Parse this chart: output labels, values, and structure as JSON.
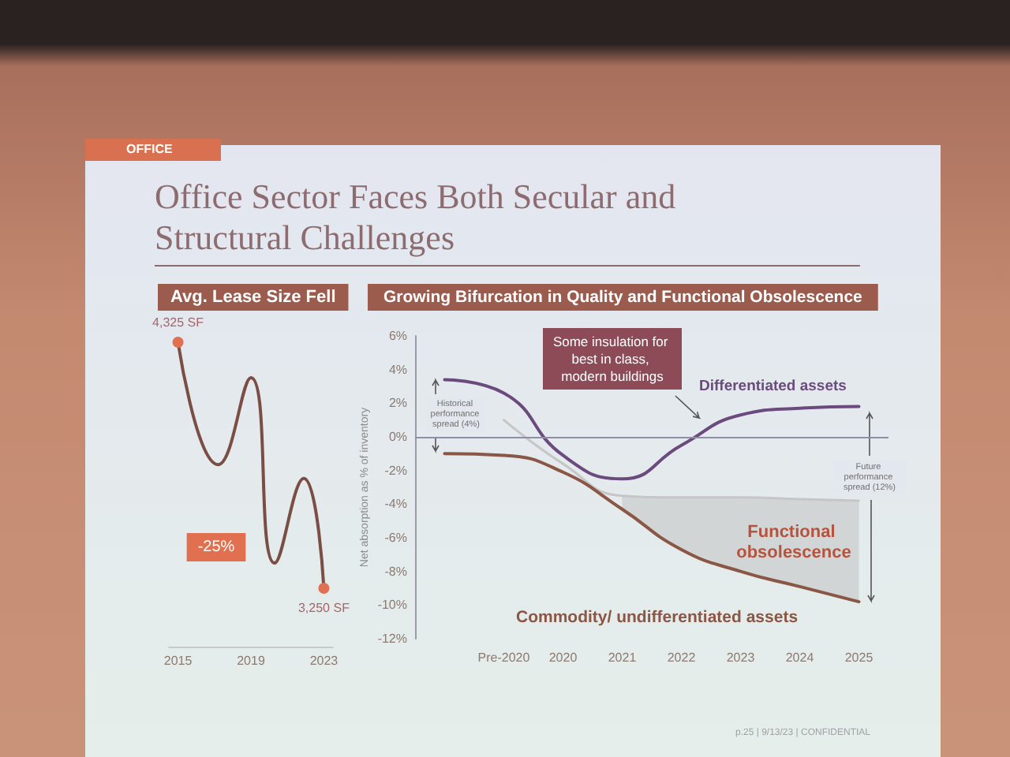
{
  "chart_data": [
    {
      "type": "other",
      "title": "Office Sector Faces Both Secular and Structural Challenges",
      "annotations": [
        "OFFICE",
        "p.25 | 9/13/23 | CONFIDENTIAL"
      ]
    },
    {
      "type": "line",
      "title": "Avg. Lease Size Fell",
      "x": [
        2015,
        2017.2,
        2019,
        2020.3,
        2021.9,
        2023
      ],
      "values": [
        4325,
        3790,
        4170,
        3360,
        3730,
        3250
      ],
      "value_labels": [
        "4,325 SF",
        null,
        null,
        null,
        null,
        "3,250 SF"
      ],
      "color": "#7a4e44",
      "xlim": [
        2014.5,
        2023.5
      ],
      "xticks": [
        2015,
        2019,
        2023
      ],
      "tick_labels": "x",
      "annotations": [
        "-25%"
      ]
    },
    {
      "type": "line",
      "title": "Growing Bifurcation in Quality and Functional Obsolescence",
      "ylabel": "Net absorption as % of inventory",
      "categories": [
        null,
        "Pre-2020",
        "2020",
        "2021",
        "2022",
        "2023",
        "2024",
        "2025"
      ],
      "series": [
        {
          "color": "#c6c6c6",
          "values": [
            null,
            1.0,
            -1.6,
            -3.5,
            -3.6,
            -3.6,
            -3.7,
            -3.8
          ],
          "lower": [
            null,
            null,
            null,
            -4.3,
            -6.7,
            -8.0,
            -8.9,
            -9.8
          ],
          "upper": [
            null,
            null,
            null,
            -3.5,
            -3.6,
            -3.6,
            -3.7,
            -3.8
          ]
        },
        {
          "name": "Differentiated assets",
          "color": "#6b4b7d",
          "values": [
            3.4,
            2.6,
            -1.1,
            -2.5,
            -0.5,
            1.3,
            1.7,
            1.8
          ]
        },
        {
          "name": "Commodity/ undifferentiated assets",
          "color": "#8a5646",
          "values": [
            -1.0,
            -1.1,
            -2.1,
            -4.3,
            -6.7,
            -8.0,
            -8.9,
            -9.8
          ]
        }
      ],
      "ylim": [
        -12,
        6
      ],
      "yticks": [
        {
          "value": 6,
          "label": "6%"
        },
        {
          "value": 4,
          "label": "4%"
        },
        {
          "value": 2,
          "label": "2%"
        },
        {
          "value": 0,
          "label": "0%"
        },
        {
          "value": -2,
          "label": "-2%"
        },
        {
          "value": -4,
          "label": "-4%"
        },
        {
          "value": -6,
          "label": "-6%"
        },
        {
          "value": -8,
          "label": "-8%"
        },
        {
          "value": -10,
          "label": "-10%"
        },
        {
          "value": -12,
          "label": "-12%"
        }
      ],
      "ref_lines": [
        {
          "axis": "y",
          "value": 0,
          "color": "#8e8ea6"
        }
      ],
      "marker": "none",
      "annotations": [
        "Some insulation for best in class, modern buildings",
        "Historical performance spread (4%)",
        "Future performance spread (12%)",
        "Functional obsolescence"
      ]
    }
  ]
}
